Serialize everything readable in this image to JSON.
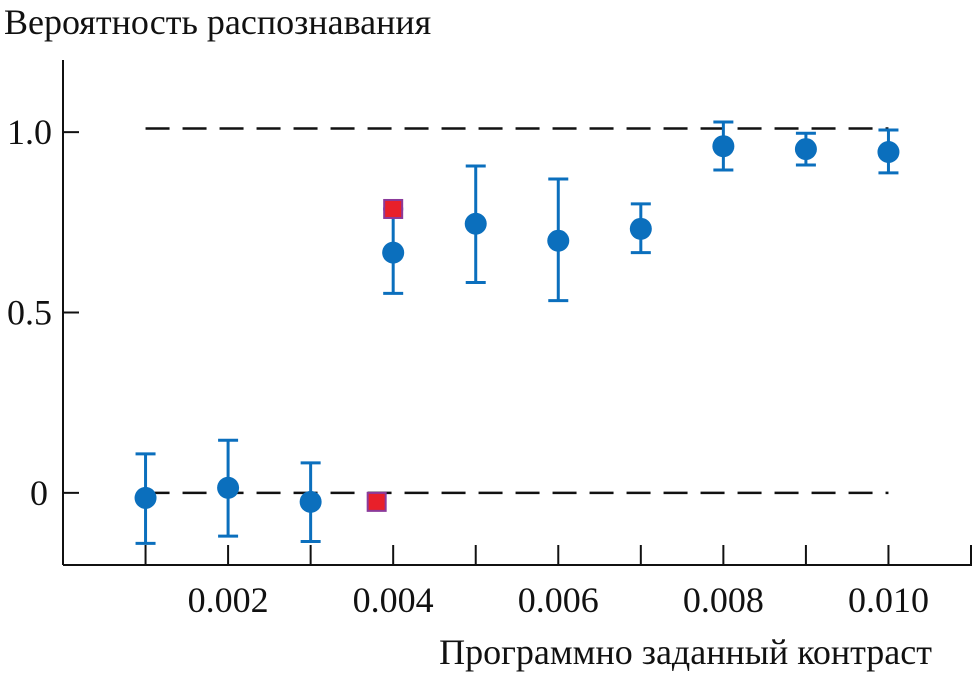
{
  "chart_data": {
    "type": "scatter",
    "title": "",
    "ylabel": "Вероятность распознавания",
    "xlabel": "Программно заданный контраст",
    "xlim": [
      0,
      0.011
    ],
    "ylim": [
      -0.2,
      1.2
    ],
    "x_ticks": [
      0.001,
      0.002,
      0.003,
      0.004,
      0.005,
      0.006,
      0.007,
      0.008,
      0.009,
      0.01,
      0.011
    ],
    "x_tick_labels": [
      {
        "value": 0.002,
        "label": "0.002"
      },
      {
        "value": 0.004,
        "label": "0.004"
      },
      {
        "value": 0.006,
        "label": "0.006"
      },
      {
        "value": 0.008,
        "label": "0.008"
      },
      {
        "value": 0.01,
        "label": "0.010"
      }
    ],
    "y_tick_labels": [
      {
        "value": 0,
        "label": "0"
      },
      {
        "value": 0.5,
        "label": "0.5"
      },
      {
        "value": 1.0,
        "label": "1.0"
      }
    ],
    "grid": false,
    "reference_lines": [
      {
        "y": 1.01,
        "x_from": 0.001,
        "x_to": 0.01,
        "style": "dashed",
        "color": "#111111"
      },
      {
        "y": 0,
        "x_from": 0.001,
        "x_to": 0.01,
        "style": "dashed",
        "color": "#111111"
      }
    ],
    "series": [
      {
        "marker": "circle",
        "color": "#0b6fbd",
        "points": [
          {
            "x": 0.001,
            "y": -0.014,
            "err_low": -0.14,
            "err_high": 0.108
          },
          {
            "x": 0.002,
            "y": 0.014,
            "err_low": -0.12,
            "err_high": 0.146
          },
          {
            "x": 0.003,
            "y": -0.025,
            "err_low": -0.135,
            "err_high": 0.083
          },
          {
            "x": 0.004,
            "y": 0.666,
            "err_low": 0.553,
            "err_high": 0.787
          },
          {
            "x": 0.005,
            "y": 0.746,
            "err_low": 0.583,
            "err_high": 0.906
          },
          {
            "x": 0.006,
            "y": 0.699,
            "err_low": 0.533,
            "err_high": 0.87
          },
          {
            "x": 0.007,
            "y": 0.732,
            "err_low": 0.666,
            "err_high": 0.801
          },
          {
            "x": 0.008,
            "y": 0.961,
            "err_low": 0.895,
            "err_high": 1.028
          },
          {
            "x": 0.009,
            "y": 0.953,
            "err_low": 0.909,
            "err_high": 0.997
          },
          {
            "x": 0.01,
            "y": 0.945,
            "err_low": 0.887,
            "err_high": 1.006
          }
        ]
      },
      {
        "marker": "square",
        "color": "#e8202a",
        "edge_color": "#8b3a9a",
        "points": [
          {
            "x": 0.004,
            "y": 0.787
          },
          {
            "x": 0.0038,
            "y": -0.025
          }
        ]
      }
    ]
  }
}
